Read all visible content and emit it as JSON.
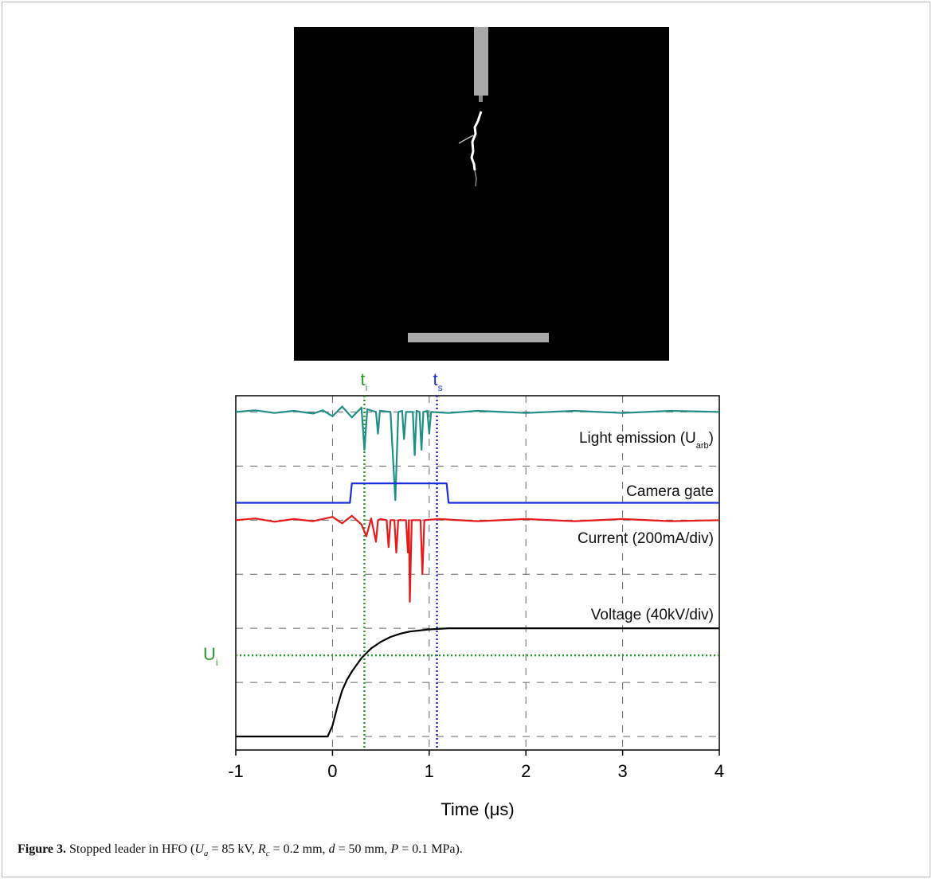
{
  "chart_data": {
    "type": "line",
    "xlabel": "Time (μs)",
    "xlim": [
      -1,
      4
    ],
    "xticks": [
      -1,
      0,
      1,
      2,
      3,
      4
    ],
    "ylim": [
      -0.25,
      6.3
    ],
    "grid": true,
    "series": [
      {
        "name": "Light emission (U",
        "name_sub": "arb",
        "name_end": ")",
        "color": "#1f8f88",
        "x": [
          -1,
          -0.8,
          -0.6,
          -0.4,
          -0.2,
          -0.1,
          0,
          0.1,
          0.2,
          0.3,
          0.33,
          0.36,
          0.45,
          0.47,
          0.49,
          0.6,
          0.65,
          0.68,
          0.72,
          0.74,
          0.76,
          0.83,
          0.85,
          0.87,
          0.9,
          0.92,
          0.94,
          0.98,
          1.0,
          1.02,
          1.2,
          1.5,
          2,
          2.5,
          3,
          3.5,
          4
        ],
        "values": [
          6.0,
          6.03,
          5.98,
          6.02,
          5.97,
          6.03,
          5.92,
          6.1,
          5.9,
          6.08,
          5.3,
          6.05,
          6.0,
          5.6,
          6.02,
          6.0,
          4.37,
          6.0,
          6.02,
          5.5,
          6.0,
          6.0,
          5.2,
          6.02,
          6.0,
          5.3,
          6.0,
          6.02,
          5.6,
          6.0,
          5.98,
          6.02,
          5.98,
          6.02,
          5.98,
          6.02,
          6.0
        ]
      },
      {
        "name": "Camera gate",
        "color": "#1a2fe0",
        "x": [
          -1,
          0.18,
          0.2,
          1.18,
          1.2,
          4
        ],
        "values": [
          4.32,
          4.32,
          4.68,
          4.68,
          4.32,
          4.32
        ]
      },
      {
        "name": "Current (200mA/div)",
        "color": "#e51c1c",
        "x": [
          -1,
          -0.8,
          -0.6,
          -0.4,
          -0.2,
          0,
          0.1,
          0.2,
          0.3,
          0.35,
          0.4,
          0.45,
          0.47,
          0.5,
          0.56,
          0.58,
          0.6,
          0.64,
          0.66,
          0.68,
          0.76,
          0.78,
          0.79,
          0.8,
          0.82,
          0.91,
          0.93,
          0.95,
          1.1,
          1.5,
          2,
          2.5,
          3,
          3.5,
          4
        ],
        "values": [
          4.0,
          4.03,
          3.97,
          4.02,
          3.98,
          4.06,
          3.94,
          4.08,
          3.92,
          3.7,
          4.03,
          3.6,
          4.0,
          4.02,
          4.0,
          3.5,
          4.0,
          4.0,
          3.4,
          4.0,
          4.0,
          3.4,
          4.0,
          2.49,
          4.0,
          4.0,
          3.0,
          4.0,
          4.02,
          3.98,
          4.02,
          3.98,
          4.02,
          3.98,
          4.0
        ]
      },
      {
        "name": "Voltage (40kV/div)",
        "color": "#000000",
        "x": [
          -1,
          -0.5,
          -0.05,
          0,
          0.05,
          0.1,
          0.15,
          0.2,
          0.3,
          0.4,
          0.5,
          0.6,
          0.7,
          0.8,
          1.0,
          1.2,
          1.5,
          2,
          3,
          4
        ],
        "values": [
          0,
          0,
          0,
          0.2,
          0.55,
          0.85,
          1.05,
          1.2,
          1.45,
          1.63,
          1.75,
          1.84,
          1.9,
          1.94,
          1.98,
          2.0,
          2.0,
          2.0,
          2.0,
          2.0
        ]
      }
    ],
    "annotations": [
      {
        "text": "t",
        "sub": "i",
        "x": 0.33,
        "color": "#2a9a2a"
      },
      {
        "text": "t",
        "sub": "s",
        "x": 1.08,
        "color": "#1a2fe0"
      },
      {
        "text": "U",
        "sub": "i",
        "y": 1.5,
        "color": "#2a9a2a"
      }
    ]
  },
  "caption": {
    "parts": [
      "Figure 3.",
      " Stopped leader in HFO (",
      "U",
      "a",
      " = 85 kV, ",
      "R",
      "c",
      " = 0.2 mm, ",
      "d",
      " = 50 mm, ",
      "P",
      " = 0.1 MPa)."
    ]
  }
}
